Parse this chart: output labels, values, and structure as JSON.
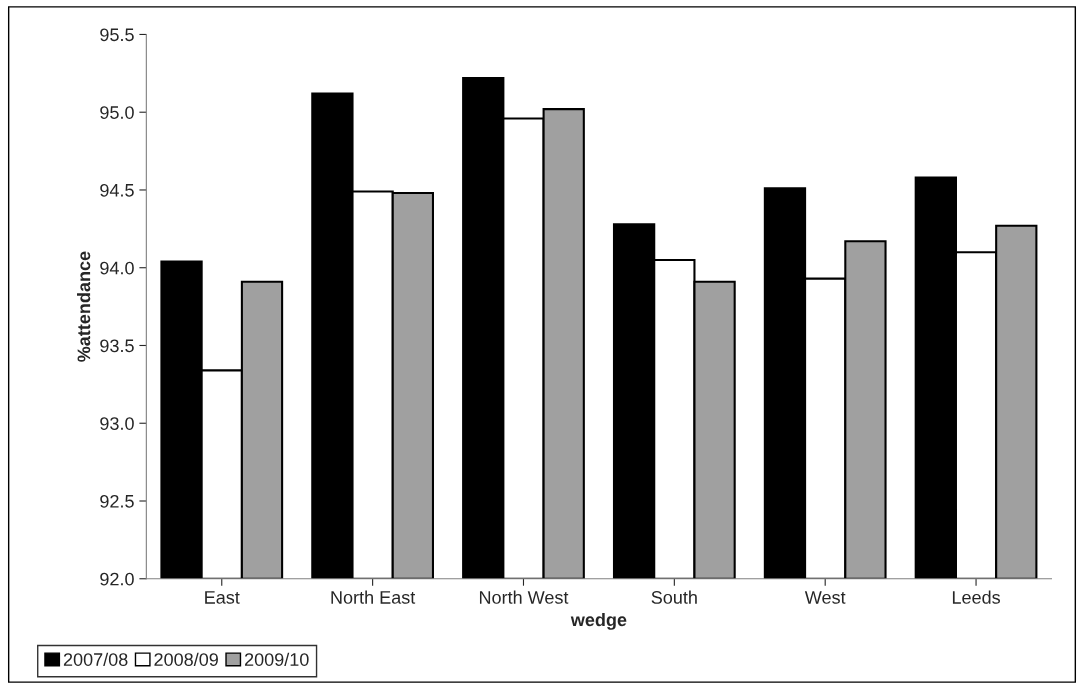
{
  "chart_data": {
    "type": "bar",
    "xlabel": "wedge",
    "ylabel": "%attendance",
    "categories": [
      "East",
      "North East",
      "North West",
      "South",
      "West",
      "Leeds"
    ],
    "series": [
      {
        "name": "2007/08",
        "color": "#000000",
        "values": [
          94.04,
          95.12,
          95.22,
          94.28,
          94.51,
          94.58
        ]
      },
      {
        "name": "2008/09",
        "color": "#ffffff",
        "values": [
          93.34,
          94.49,
          94.96,
          94.05,
          93.93,
          94.1
        ]
      },
      {
        "name": "2009/10",
        "color": "#a0a0a0",
        "values": [
          93.91,
          94.48,
          95.02,
          93.91,
          94.17,
          94.27
        ]
      }
    ],
    "ylim": [
      92.0,
      95.5
    ],
    "yticks": [
      {
        "value": 92.0,
        "label": "92.0"
      },
      {
        "value": 92.5,
        "label": "92.5"
      },
      {
        "value": 93.0,
        "label": "93.0"
      },
      {
        "value": 93.5,
        "label": "93.5"
      },
      {
        "value": 94.0,
        "label": "94.0"
      },
      {
        "value": 94.5,
        "label": "94.5"
      },
      {
        "value": 95.0,
        "label": "95.0"
      },
      {
        "value": 95.5,
        "label": "95.5"
      }
    ],
    "grid": false,
    "legend": "bottom left"
  }
}
